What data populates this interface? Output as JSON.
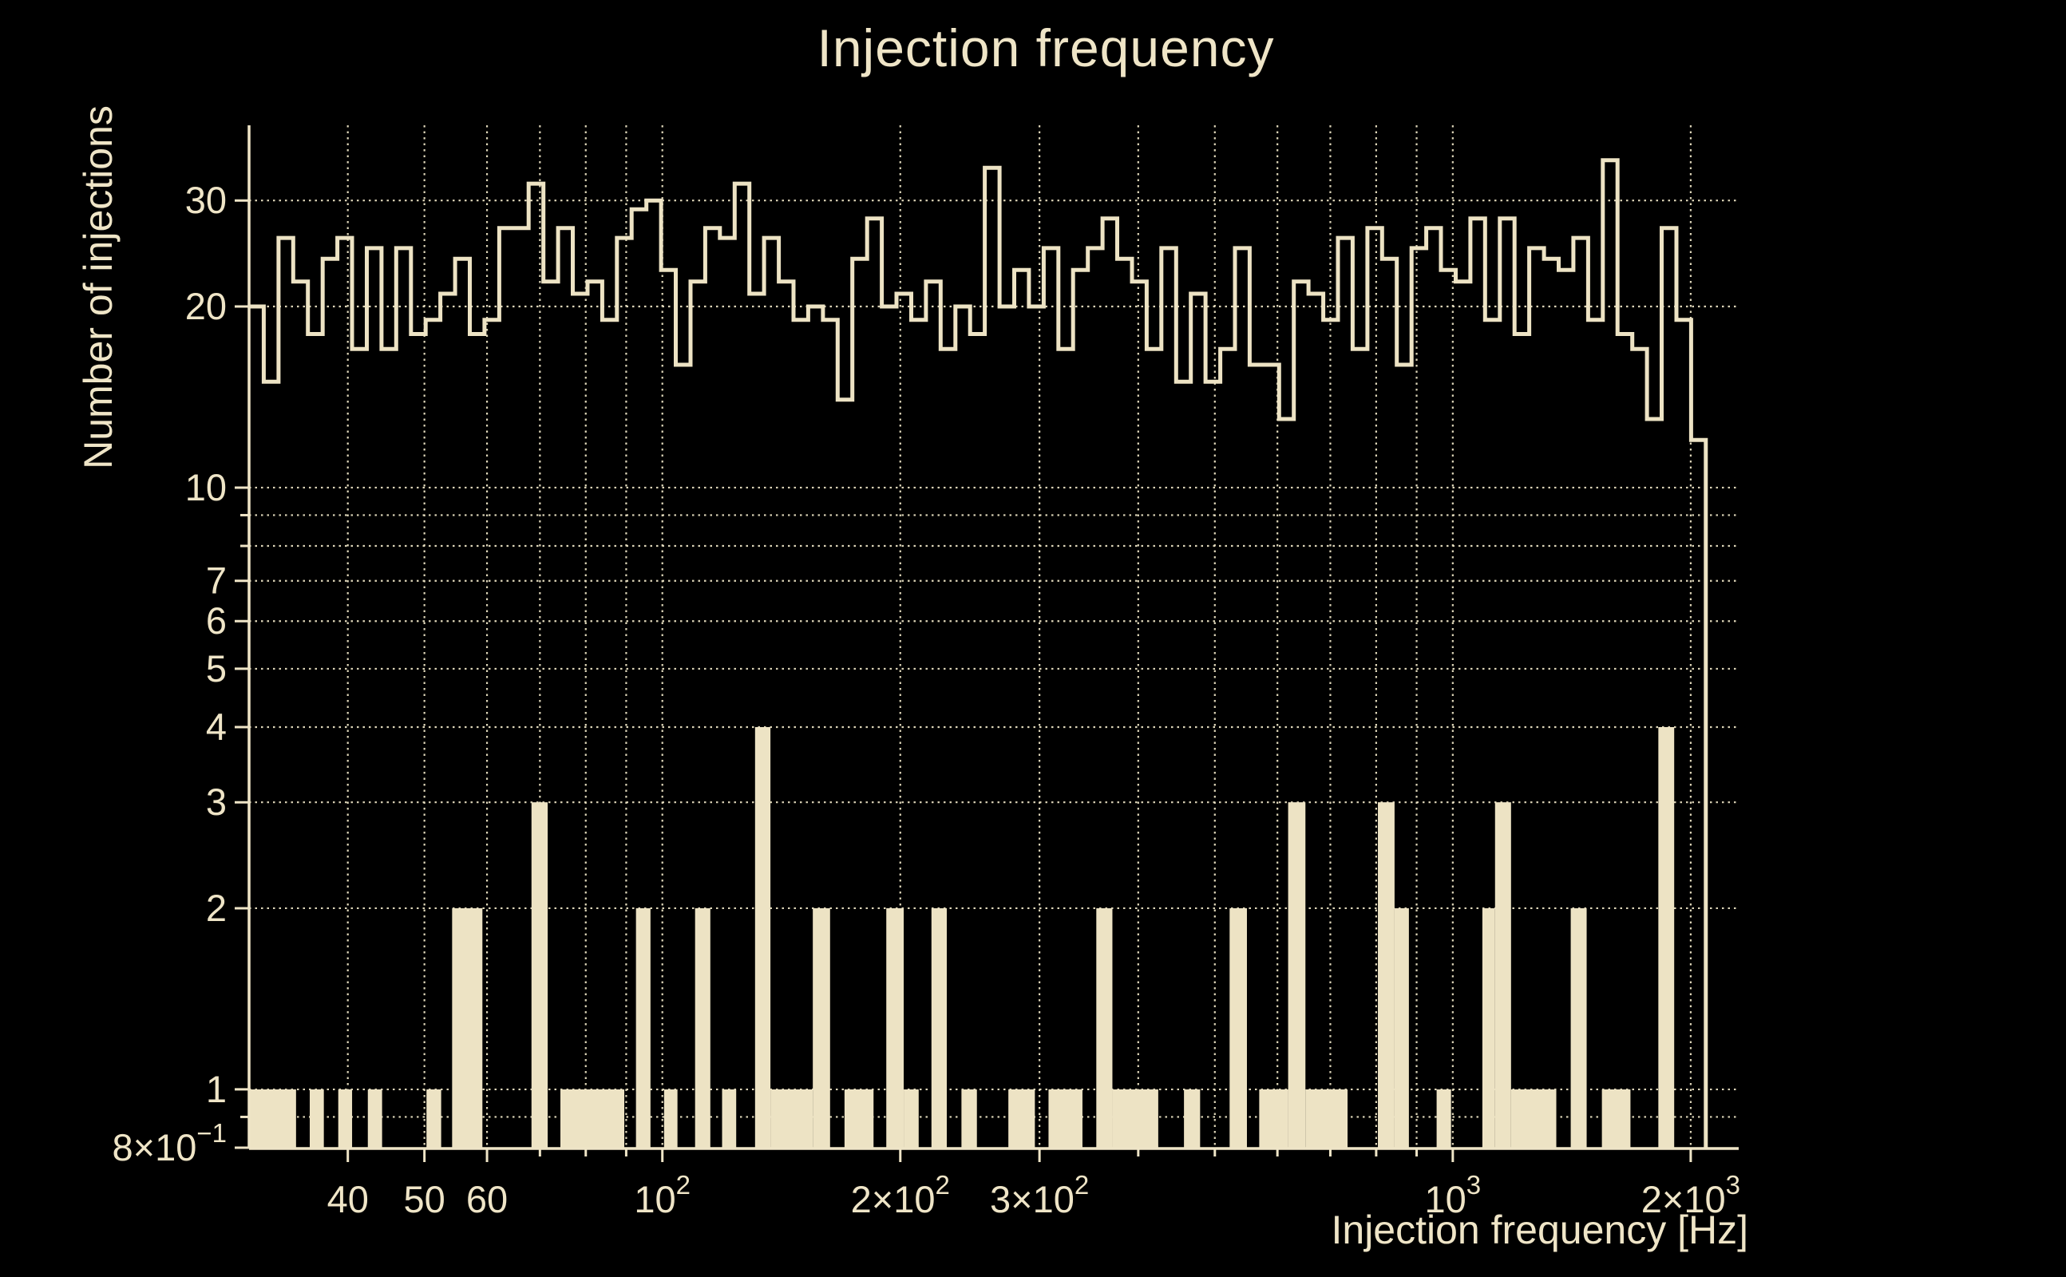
{
  "window": {
    "background": "#000000"
  },
  "colors": {
    "foreground": "#EFE5C7",
    "histogram": "#EDE3C4",
    "grid": "#E9E0C2",
    "background": "#000000"
  },
  "chart_data": {
    "type": "histogram",
    "title": "Injection frequency",
    "xlabel": "Injection frequency [Hz]",
    "ylabel": "Number of injections",
    "x_scale": "log",
    "y_scale": "log",
    "xlim_hz": [
      30,
      2300
    ],
    "ylim": [
      0.8,
      40
    ],
    "grid_style": "dotted",
    "legend": "none",
    "x_ticks": [
      {
        "v": 40,
        "label": "40"
      },
      {
        "v": 50,
        "label": "50"
      },
      {
        "v": 60,
        "label": "60"
      },
      {
        "v": 100,
        "label": "10",
        "sup": "2"
      },
      {
        "v": 200,
        "label": "2×10",
        "sup": "2"
      },
      {
        "v": 300,
        "label": "3×10",
        "sup": "2"
      },
      {
        "v": 1000,
        "label": "10",
        "sup": "3"
      },
      {
        "v": 2000,
        "label": "2×10",
        "sup": "3"
      }
    ],
    "x_grid_minor": [
      70,
      80,
      90,
      400,
      500,
      600,
      700,
      800,
      900
    ],
    "y_ticks": [
      {
        "v": 30,
        "label": "30"
      },
      {
        "v": 20,
        "label": "20"
      },
      {
        "v": 10,
        "label": "10"
      },
      {
        "v": 7,
        "label": "7"
      },
      {
        "v": 6,
        "label": "6"
      },
      {
        "v": 5,
        "label": "5"
      },
      {
        "v": 4,
        "label": "4"
      },
      {
        "v": 3,
        "label": "3"
      },
      {
        "v": 2,
        "label": "2"
      },
      {
        "v": 1,
        "label": "1"
      },
      {
        "v": 0.8,
        "label": "8×10",
        "sup": "−1"
      }
    ],
    "y_grid_minor": [
      0.9,
      8,
      9
    ],
    "outline_histogram": {
      "style": "step-outline",
      "range_hz": [
        30,
        2090
      ],
      "bin_count": 99,
      "counts": [
        20,
        15,
        26,
        22,
        18,
        24,
        26,
        17,
        25,
        17,
        25,
        18,
        19,
        21,
        24,
        18,
        19,
        27,
        27,
        32,
        22,
        27,
        21,
        22,
        19,
        26,
        29,
        30,
        23,
        16,
        22,
        27,
        26,
        32,
        21,
        26,
        22,
        19,
        20,
        19,
        14,
        24,
        28,
        20,
        21,
        19,
        22,
        17,
        20,
        18,
        34,
        20,
        23,
        20,
        25,
        17,
        23,
        25,
        28,
        24,
        22,
        17,
        25,
        15,
        21,
        15,
        17,
        25,
        16,
        16,
        13,
        22,
        21,
        19,
        26,
        17,
        27,
        24,
        16,
        25,
        27,
        23,
        22,
        28,
        19,
        28,
        18,
        25,
        24,
        23,
        26,
        19,
        35,
        18,
        17,
        13,
        27,
        19,
        12
      ]
    },
    "filled_histogram": {
      "style": "filled-bars",
      "bars_hz": [
        [
          30,
          34.4,
          1
        ],
        [
          35.8,
          37.3,
          1
        ],
        [
          38.9,
          40.5,
          1
        ],
        [
          42.4,
          44.2,
          1
        ],
        [
          50.3,
          52.5,
          1
        ],
        [
          54.2,
          59.2,
          2
        ],
        [
          68.3,
          71.6,
          3
        ],
        [
          74.3,
          89.5,
          1
        ],
        [
          92.6,
          96.6,
          2
        ],
        [
          100.5,
          104.5,
          1
        ],
        [
          110,
          115,
          2
        ],
        [
          119,
          124,
          1
        ],
        [
          131,
          137,
          4
        ],
        [
          137,
          155,
          1
        ],
        [
          155,
          163,
          2
        ],
        [
          170,
          185,
          1
        ],
        [
          192,
          202,
          2
        ],
        [
          202,
          211,
          1
        ],
        [
          219,
          229,
          2
        ],
        [
          239,
          250,
          1
        ],
        [
          274,
          296,
          1
        ],
        [
          308,
          340,
          1
        ],
        [
          354,
          371,
          2
        ],
        [
          371,
          424,
          1
        ],
        [
          457,
          479,
          1
        ],
        [
          522,
          549,
          2
        ],
        [
          569,
          619,
          1
        ],
        [
          619,
          651,
          3
        ],
        [
          651,
          736,
          1
        ],
        [
          804,
          844,
          3
        ],
        [
          844,
          880,
          2
        ],
        [
          954,
          995,
          1
        ],
        [
          1090,
          1131,
          2
        ],
        [
          1131,
          1185,
          3
        ],
        [
          1185,
          1352,
          1
        ],
        [
          1410,
          1477,
          2
        ],
        [
          1544,
          1678,
          1
        ],
        [
          1820,
          1906,
          4
        ]
      ]
    }
  }
}
